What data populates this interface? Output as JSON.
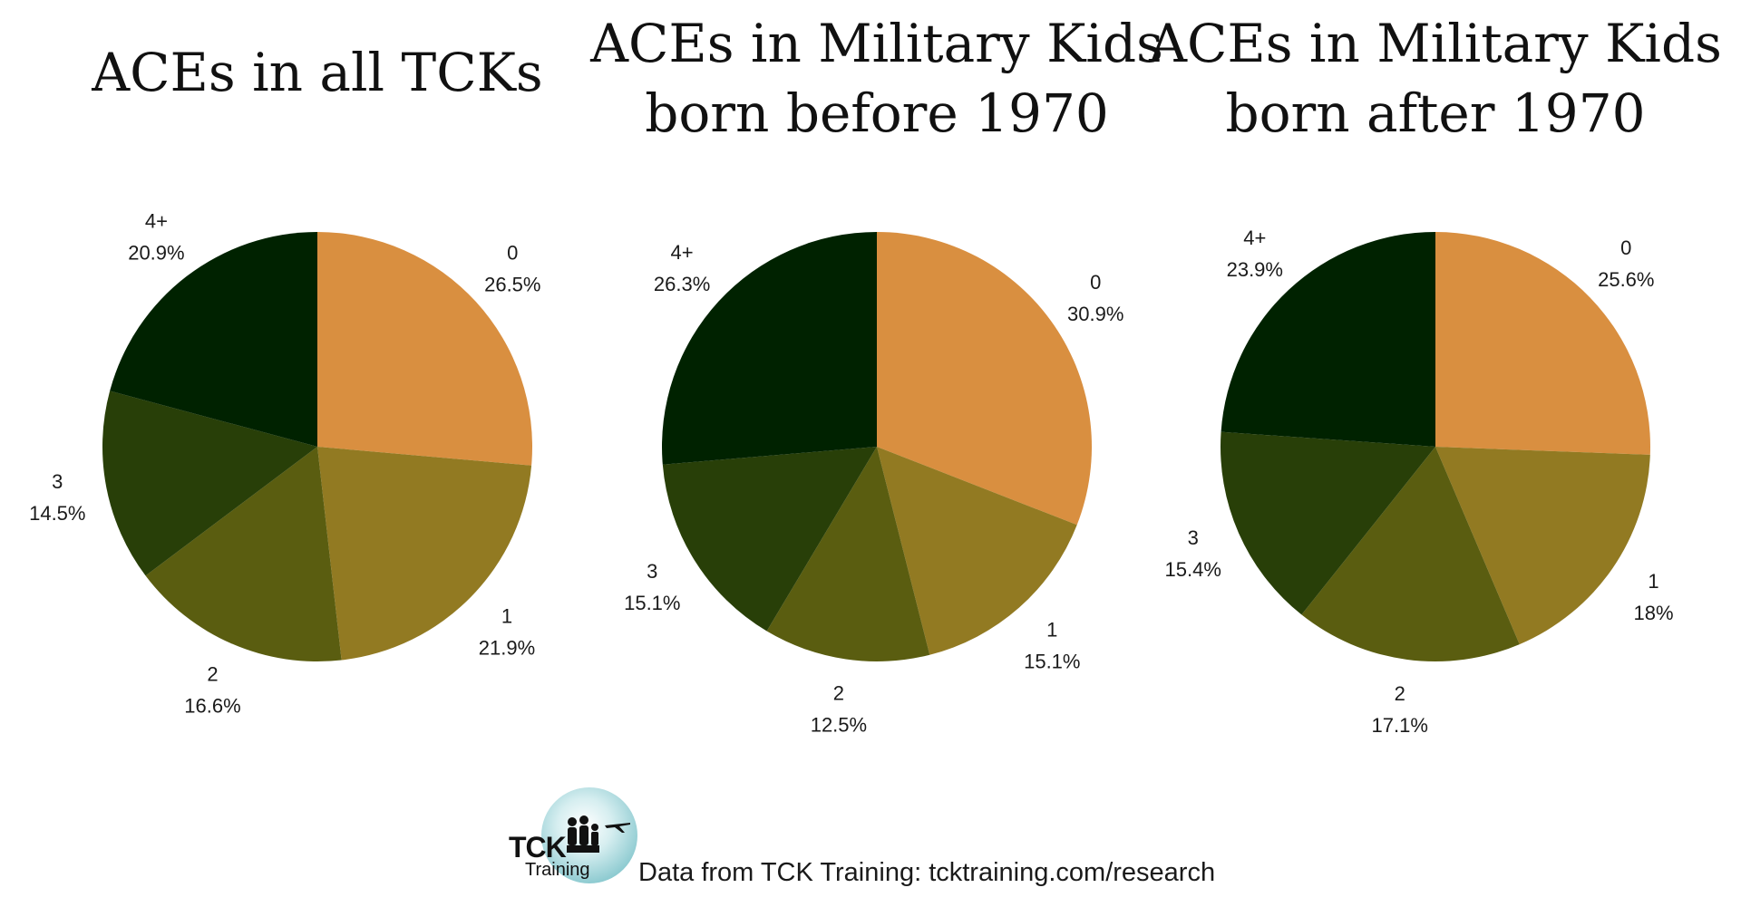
{
  "colors": {
    "0": "#d98f40",
    "1": "#927a22",
    "2": "#5a5d10",
    "3": "#283f08",
    "4+": "#002200",
    "background": "#ffffff",
    "logo_circle": "#8ccad0"
  },
  "chart_data": [
    {
      "type": "pie",
      "title_lines": [
        "ACEs in all TCKs"
      ],
      "slices": [
        {
          "label": "0",
          "value": 26.5,
          "value_text": "26.5%"
        },
        {
          "label": "1",
          "value": 21.9,
          "value_text": "21.9%"
        },
        {
          "label": "2",
          "value": 16.6,
          "value_text": "16.6%"
        },
        {
          "label": "3",
          "value": 14.5,
          "value_text": "14.5%"
        },
        {
          "label": "4+",
          "value": 20.9,
          "value_text": "20.9%"
        }
      ]
    },
    {
      "type": "pie",
      "title_lines": [
        "ACEs in Military Kids",
        "born before 1970"
      ],
      "slices": [
        {
          "label": "0",
          "value": 30.9,
          "value_text": "30.9%"
        },
        {
          "label": "1",
          "value": 15.1,
          "value_text": "15.1%"
        },
        {
          "label": "2",
          "value": 12.5,
          "value_text": "12.5%"
        },
        {
          "label": "3",
          "value": 15.1,
          "value_text": "15.1%"
        },
        {
          "label": "4+",
          "value": 26.3,
          "value_text": "26.3%"
        }
      ]
    },
    {
      "type": "pie",
      "title_lines": [
        "ACEs in Military Kids",
        "born after 1970"
      ],
      "slices": [
        {
          "label": "0",
          "value": 25.6,
          "value_text": "25.6%"
        },
        {
          "label": "1",
          "value": 18,
          "value_text": "18%"
        },
        {
          "label": "2",
          "value": 17.1,
          "value_text": "17.1%"
        },
        {
          "label": "3",
          "value": 15.4,
          "value_text": "15.4%"
        },
        {
          "label": "4+",
          "value": 23.9,
          "value_text": "23.9%"
        }
      ]
    }
  ],
  "footer": {
    "logo_text_main": "TCK",
    "logo_text_sub": "Training",
    "source": "Data from TCK Training: tcktraining.com/research"
  }
}
